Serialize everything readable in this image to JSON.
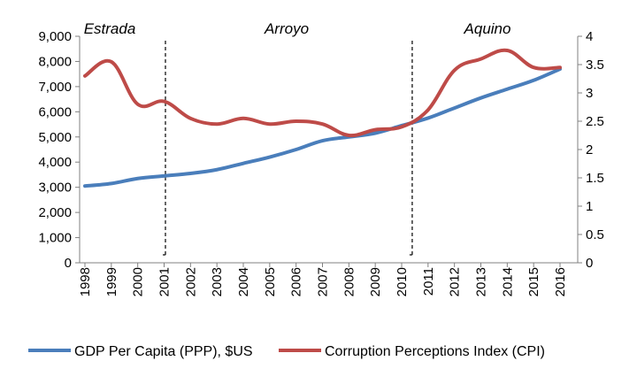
{
  "chart_data": {
    "type": "line",
    "x": [
      1998,
      1999,
      2000,
      2001,
      2002,
      2003,
      2004,
      2005,
      2006,
      2007,
      2008,
      2009,
      2010,
      2011,
      2012,
      2013,
      2014,
      2015,
      2016
    ],
    "x_tick_labels": [
      "1998",
      "1999",
      "2000",
      "2001",
      "2002",
      "2003",
      "2004",
      "2005",
      "2006",
      "2007",
      "2008",
      "2009",
      "2010",
      "2011",
      "2012",
      "2013",
      "2014",
      "2015",
      "2016"
    ],
    "y_left": {
      "ylim": [
        0,
        9000
      ],
      "ticks": [
        0,
        1000,
        2000,
        3000,
        4000,
        5000,
        6000,
        7000,
        8000,
        9000
      ],
      "tick_labels": [
        "0",
        "1,000",
        "2,000",
        "3,000",
        "4,000",
        "5,000",
        "6,000",
        "7,000",
        "8,000",
        "9,000"
      ]
    },
    "y_right": {
      "ylim": [
        0,
        4
      ],
      "ticks": [
        0,
        0.5,
        1,
        1.5,
        2,
        2.5,
        3,
        3.5,
        4
      ],
      "tick_labels": [
        "0",
        "0.5",
        "1",
        "1.5",
        "2",
        "2.5",
        "3",
        "3.5",
        "4"
      ]
    },
    "series": [
      {
        "name": "GDP Per Capita (PPP), $US",
        "axis": "left",
        "color": "#4a7ebb",
        "values": [
          3050,
          3150,
          3350,
          3450,
          3550,
          3700,
          3950,
          4200,
          4500,
          4850,
          5000,
          5150,
          5450,
          5750,
          6150,
          6550,
          6900,
          7250,
          7700
        ]
      },
      {
        "name": "Corruption Perceptions Index (CPI)",
        "axis": "right",
        "color": "#be4b48",
        "values": [
          3.3,
          3.55,
          2.8,
          2.85,
          2.55,
          2.45,
          2.55,
          2.45,
          2.5,
          2.45,
          2.25,
          2.35,
          2.4,
          2.7,
          3.4,
          3.6,
          3.75,
          3.45,
          3.45
        ]
      }
    ],
    "periods": [
      {
        "label": "Estrada"
      },
      {
        "label": "Arroyo",
        "divider_x": 2001.05
      },
      {
        "label": "Aquino",
        "divider_x": 2010.4
      }
    ],
    "grid": false,
    "legend_position": "bottom"
  }
}
